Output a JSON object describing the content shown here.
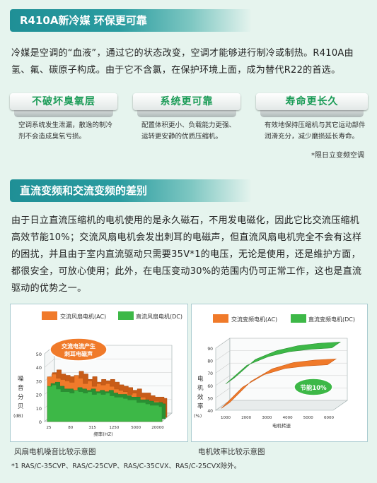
{
  "section1": {
    "title": "R410A新冷媒 环保更可靠",
    "paragraph": "冷媒是空调的“血液”，通过它的状态改变，空调才能够进行制冷或制热。R410A由氢、氟、碳原子构成。由于它不含氯，在保护环境上面，成为替代R22的首选。",
    "features": [
      {
        "label": "不破坏臭氧层",
        "desc": "空调系统发生泄漏，散逸的制冷剂不会造成臭氧亏损。"
      },
      {
        "label": "系统更可靠",
        "desc": "配置体积更小、负载能力更强、运转更安静的优质压缩机。"
      },
      {
        "label": "寿命更长久",
        "desc": "有效地保持压缩机与其它运动部件润滑充分，减少磨损延长寿命。"
      }
    ],
    "note": "*限日立变频空调"
  },
  "section2": {
    "title": "直流变频和交流变频的差别",
    "paragraph": "由于日立直流压缩机的电机使用的是永久磁石，不用发电磁化，因此它比交流压缩机高效节能10%；交流风扇电机会发出刺耳的电磁声，但直流风扇电机完全不会有这样的困扰，并且由于室内直流驱动只需要35V*1的电压，无论是使用，还是维护方面，都很安全，可放心使用；此外，在电压变动30%的范围内仍可正常工作，这也是直流驱动的优势之一。"
  },
  "chart_data": [
    {
      "type": "area",
      "title": "",
      "legend": [
        "交流风扇电机(AC)",
        "直流风扇电机(DC)"
      ],
      "ylabel": "噪音分贝(dB)",
      "xlabel": "频率(HZ)",
      "yticks": [
        0,
        10,
        20,
        30,
        40,
        50
      ],
      "xticks": [
        "25",
        "80",
        "315",
        "1250",
        "5000",
        "20000"
      ],
      "ylim": [
        0,
        50
      ],
      "annotation": "交流电流产生刺耳电磁声",
      "series": [
        {
          "name": "交流风扇电机(AC)",
          "color": "#f07a2a",
          "values": [
            33,
            35,
            32,
            31,
            30,
            29,
            34,
            32,
            28,
            30,
            26,
            28,
            27,
            28,
            26,
            24,
            23,
            22,
            20,
            21,
            18,
            18,
            16,
            15,
            15,
            14
          ]
        },
        {
          "name": "直流风扇电机(DC)",
          "color": "#3db847",
          "values": [
            26,
            27,
            24,
            22,
            22,
            21,
            23,
            22,
            21,
            22,
            20,
            21,
            20,
            21,
            19,
            18,
            18,
            17,
            16,
            16,
            14,
            14,
            13,
            12,
            12,
            11
          ]
        }
      ],
      "caption": "风扇电机噪音比较示意图"
    },
    {
      "type": "line",
      "title": "",
      "legend": [
        "交流变频电机(AC)",
        "直流变频电机(DC)"
      ],
      "ylabel": "电机效率(%)",
      "xlabel": "电机转速",
      "yticks": [
        40,
        50,
        60,
        70,
        80,
        90
      ],
      "xticks": [
        "1000",
        "2000",
        "3000",
        "4000",
        "5000",
        "6000"
      ],
      "ylim": [
        40,
        90
      ],
      "annotation": "节能10%",
      "series": [
        {
          "name": "交流变频电机(AC)",
          "color": "#f07a2a",
          "values": [
            45,
            62,
            72,
            77,
            79,
            80
          ]
        },
        {
          "name": "直流变频电机(DC)",
          "color": "#3db847",
          "values": [
            60,
            75,
            82,
            86,
            88,
            89
          ]
        }
      ],
      "caption": "电机效率比较示意图"
    }
  ],
  "footnote": "*1 RAS/C-35CVP、RAS/C-25CVP、RAS/C-35CVX、RAS/C-25CVX除外。",
  "colors": {
    "accent": "#1f8f96",
    "green": "#1a9b56",
    "ac": "#f07a2a",
    "dc": "#3db847"
  }
}
